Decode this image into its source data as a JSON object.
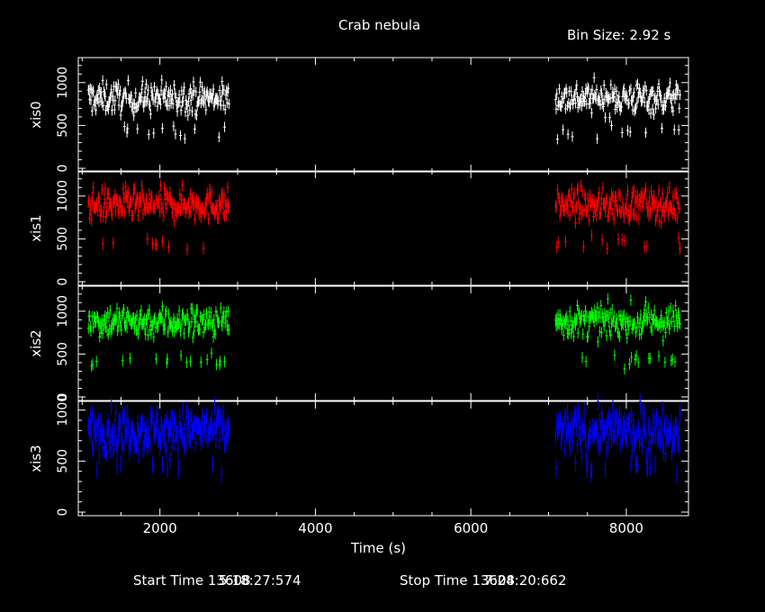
{
  "chart_data": {
    "type": "scatter",
    "title": "Crab nebula",
    "bin_size": "Bin Size: 2.92 s",
    "xlabel": "Time (s)",
    "xlim": [
      950,
      8800
    ],
    "x_ticks": [
      2000,
      4000,
      6000,
      8000
    ],
    "x_tick_labels": [
      "2000",
      "4000",
      "6000",
      "8000"
    ],
    "segments": [
      [
        1080,
        2890
      ],
      [
        7090,
        8690
      ]
    ],
    "start_time_label": "Start Time 13608",
    "start_time_value": "5:18:27:574",
    "stop_time_label": "Stop Time 13608",
    "stop_time_value": "7:24:20:662",
    "panels": [
      {
        "name": "xis0",
        "color": "#ffffff",
        "ylim": [
          0,
          1250
        ],
        "y_ticks": [
          0,
          500,
          1000
        ],
        "y_tick_labels": [
          "0",
          "500",
          "1000"
        ],
        "level_high": 820,
        "level_low": 430,
        "scatter": 90,
        "errbar": 60
      },
      {
        "name": "xis1",
        "color": "#ff0000",
        "ylim": [
          0,
          1250
        ],
        "y_ticks": [
          0,
          500,
          1000
        ],
        "y_tick_labels": [
          "0",
          "500",
          "1000"
        ],
        "level_high": 900,
        "level_low": 440,
        "scatter": 90,
        "errbar": 70
      },
      {
        "name": "xis2",
        "color": "#00ff00",
        "ylim": [
          0,
          1250
        ],
        "y_ticks": [
          0,
          500,
          1000
        ],
        "y_tick_labels": [
          "0",
          "500",
          "1000"
        ],
        "level_high": 880,
        "level_low": 420,
        "scatter": 90,
        "errbar": 65
      },
      {
        "name": "xis3",
        "color": "#0000ff",
        "ylim": [
          0,
          1050
        ],
        "y_ticks": [
          0,
          500,
          1000
        ],
        "y_tick_labels": [
          "0",
          "500",
          "1000"
        ],
        "level_high": 800,
        "level_low": 430,
        "scatter": 100,
        "errbar": 85
      }
    ]
  }
}
